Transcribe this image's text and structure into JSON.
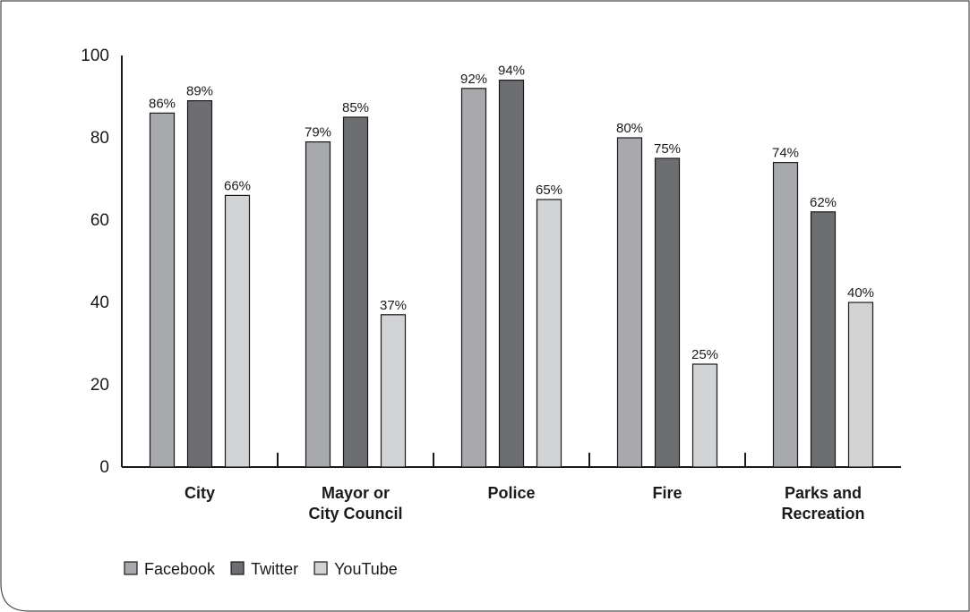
{
  "chart_data": {
    "type": "bar",
    "categories": [
      [
        "City"
      ],
      [
        "Mayor or",
        "City Council"
      ],
      [
        "Police"
      ],
      [
        "Fire"
      ],
      [
        "Parks and",
        "Recreation"
      ]
    ],
    "series": [
      {
        "name": "Facebook",
        "values": [
          86,
          79,
          92,
          80,
          74
        ],
        "labels": [
          "86%",
          "79%",
          "92%",
          "80%",
          "74%"
        ],
        "color": "#a7a9ac"
      },
      {
        "name": "Twitter",
        "values": [
          89,
          85,
          94,
          75,
          62
        ],
        "labels": [
          "89%",
          "85%",
          "94%",
          "75%",
          "62%"
        ],
        "color": "#6d6e71"
      },
      {
        "name": "YouTube",
        "values": [
          66,
          37,
          65,
          25,
          40
        ],
        "labels": [
          "66%",
          "37%",
          "65%",
          "25%",
          "40%"
        ],
        "color": "#d1d3d4"
      }
    ],
    "ylim": [
      0,
      100
    ],
    "yticks": [
      "0",
      "20",
      "40",
      "60",
      "80",
      "100"
    ],
    "grid": false,
    "legend_position": "bottom-left"
  }
}
